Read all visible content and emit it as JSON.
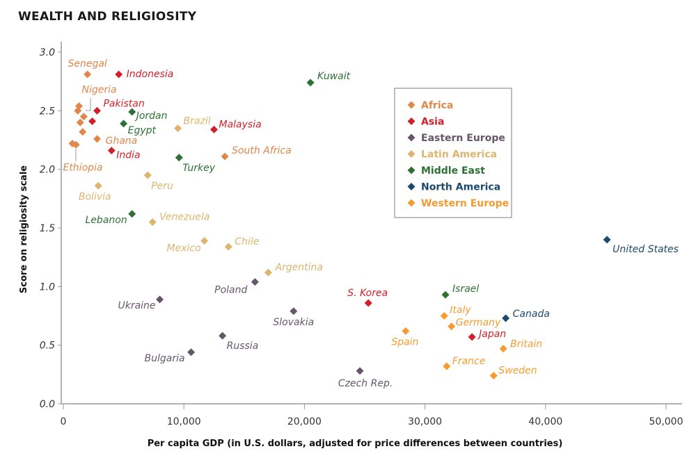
{
  "chart_data": {
    "type": "scatter",
    "title": "WEALTH AND RELIGIOSITY",
    "xlabel": "Per capita GDP (in U.S. dollars, adjusted for price differences between countries)",
    "ylabel": "Score on religiosity scale",
    "xlim": [
      0,
      50000
    ],
    "ylim": [
      0,
      3.0
    ],
    "x_ticks": [
      "0",
      "10,000",
      "20,000",
      "30,000",
      "40,000",
      "50,000"
    ],
    "y_ticks": [
      "0.0",
      "0.5",
      "1.0",
      "1.5",
      "2.0",
      "2.5",
      "3.0"
    ],
    "grid": false,
    "legend_position": "top-right",
    "groups": [
      {
        "name": "Africa",
        "color": "#e0874a"
      },
      {
        "name": "Asia",
        "color": "#d2202a"
      },
      {
        "name": "Eastern Europe",
        "color": "#66566b"
      },
      {
        "name": "Latin America",
        "color": "#dcb56e"
      },
      {
        "name": "Middle East",
        "color": "#2d7134"
      },
      {
        "name": "North America",
        "color": "#1c4a6c"
      },
      {
        "name": "Western Europe",
        "color": "#f59b30"
      }
    ],
    "points": [
      {
        "label": "Senegal",
        "group": "Africa",
        "x": 2000,
        "y": 2.81
      },
      {
        "label": "Nigeria",
        "group": "Africa",
        "x": 1300,
        "y": 2.54
      },
      {
        "label": "",
        "group": "Africa",
        "x": 1200,
        "y": 2.5
      },
      {
        "label": "",
        "group": "Africa",
        "x": 1700,
        "y": 2.45
      },
      {
        "label": "",
        "group": "Africa",
        "x": 1400,
        "y": 2.4
      },
      {
        "label": "",
        "group": "Africa",
        "x": 1600,
        "y": 2.32
      },
      {
        "label": "Ethiopia",
        "group": "Africa",
        "x": 750,
        "y": 2.22
      },
      {
        "label": "",
        "group": "Africa",
        "x": 1050,
        "y": 2.21
      },
      {
        "label": "Ghana",
        "group": "Africa",
        "x": 2800,
        "y": 2.26
      },
      {
        "label": "South Africa",
        "group": "Africa",
        "x": 13400,
        "y": 2.11
      },
      {
        "label": "Indonesia",
        "group": "Asia",
        "x": 4600,
        "y": 2.81
      },
      {
        "label": "Pakistan",
        "group": "Asia",
        "x": 2800,
        "y": 2.5
      },
      {
        "label": "",
        "group": "Asia",
        "x": 2400,
        "y": 2.41
      },
      {
        "label": "India",
        "group": "Asia",
        "x": 4000,
        "y": 2.16
      },
      {
        "label": "Malaysia",
        "group": "Asia",
        "x": 12500,
        "y": 2.34
      },
      {
        "label": "S. Korea",
        "group": "Asia",
        "x": 25300,
        "y": 0.86
      },
      {
        "label": "Japan",
        "group": "Asia",
        "x": 33900,
        "y": 0.57
      },
      {
        "label": "Poland",
        "group": "Eastern Europe",
        "x": 15900,
        "y": 1.04
      },
      {
        "label": "Ukraine",
        "group": "Eastern Europe",
        "x": 8000,
        "y": 0.89
      },
      {
        "label": "Slovakia",
        "group": "Eastern Europe",
        "x": 19100,
        "y": 0.79
      },
      {
        "label": "Russia",
        "group": "Eastern Europe",
        "x": 13200,
        "y": 0.58
      },
      {
        "label": "Bulgaria",
        "group": "Eastern Europe",
        "x": 10600,
        "y": 0.44
      },
      {
        "label": "Czech Rep.",
        "group": "Eastern Europe",
        "x": 24600,
        "y": 0.28
      },
      {
        "label": "Brazil",
        "group": "Latin America",
        "x": 9500,
        "y": 2.35
      },
      {
        "label": "Peru",
        "group": "Latin America",
        "x": 7000,
        "y": 1.95
      },
      {
        "label": "Bolivia",
        "group": "Latin America",
        "x": 2900,
        "y": 1.86
      },
      {
        "label": "Venezuela",
        "group": "Latin America",
        "x": 7400,
        "y": 1.55
      },
      {
        "label": "Mexico",
        "group": "Latin America",
        "x": 11700,
        "y": 1.39
      },
      {
        "label": "Chile",
        "group": "Latin America",
        "x": 13700,
        "y": 1.34
      },
      {
        "label": "Argentina",
        "group": "Latin America",
        "x": 17000,
        "y": 1.12
      },
      {
        "label": "Kuwait",
        "group": "Middle East",
        "x": 20500,
        "y": 2.74
      },
      {
        "label": "Jordan",
        "group": "Middle East",
        "x": 5700,
        "y": 2.49
      },
      {
        "label": "Egypt",
        "group": "Middle East",
        "x": 5000,
        "y": 2.39
      },
      {
        "label": "Turkey",
        "group": "Middle East",
        "x": 9600,
        "y": 2.1
      },
      {
        "label": "Lebanon",
        "group": "Middle East",
        "x": 5700,
        "y": 1.62
      },
      {
        "label": "Israel",
        "group": "Middle East",
        "x": 31700,
        "y": 0.93
      },
      {
        "label": "United States",
        "group": "North America",
        "x": 45100,
        "y": 1.4
      },
      {
        "label": "Canada",
        "group": "North America",
        "x": 36700,
        "y": 0.73
      },
      {
        "label": "Spain",
        "group": "Western Europe",
        "x": 28400,
        "y": 0.62
      },
      {
        "label": "Italy",
        "group": "Western Europe",
        "x": 31600,
        "y": 0.75
      },
      {
        "label": "Germany",
        "group": "Western Europe",
        "x": 32200,
        "y": 0.66
      },
      {
        "label": "Britain",
        "group": "Western Europe",
        "x": 36500,
        "y": 0.47
      },
      {
        "label": "France",
        "group": "Western Europe",
        "x": 31800,
        "y": 0.32
      },
      {
        "label": "Sweden",
        "group": "Western Europe",
        "x": 35700,
        "y": 0.24
      }
    ]
  }
}
